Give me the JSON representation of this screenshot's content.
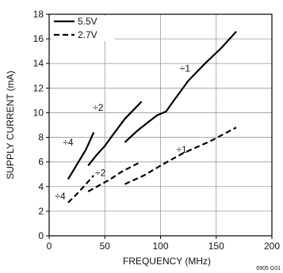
{
  "chart_data": {
    "type": "line",
    "xlabel": "FREQUENCY (MHz)",
    "ylabel": "SUPPLY CURRENT (mA)",
    "xlim": [
      0,
      200
    ],
    "ylim": [
      0,
      18
    ],
    "x_ticks": [
      0,
      50,
      100,
      150,
      200
    ],
    "y_ticks": [
      0,
      2,
      4,
      6,
      8,
      10,
      12,
      14,
      16,
      18
    ],
    "grid": true,
    "legend_position": "top-left",
    "legend": [
      {
        "label": "5.5V",
        "style": "solid"
      },
      {
        "label": "2.7V",
        "style": "dashed"
      }
    ],
    "series": [
      {
        "name": "5.5V",
        "label": "÷4",
        "style": "solid",
        "x": [
          17,
          25,
          33,
          40
        ],
        "y": [
          4.6,
          5.8,
          7.0,
          8.4
        ]
      },
      {
        "name": "5.5V",
        "label": "÷2",
        "style": "solid",
        "x": [
          35,
          42,
          50,
          58,
          68,
          83
        ],
        "y": [
          5.7,
          6.5,
          7.3,
          8.3,
          9.5,
          10.9
        ]
      },
      {
        "name": "5.5V",
        "label": "÷1",
        "style": "solid",
        "x": [
          68,
          80,
          90,
          97,
          105,
          112,
          125,
          140,
          155,
          168
        ],
        "y": [
          7.6,
          8.6,
          9.3,
          9.8,
          10.1,
          11.0,
          12.6,
          14.0,
          15.3,
          16.6
        ]
      },
      {
        "name": "2.7V",
        "label": "÷4",
        "style": "dashed",
        "x": [
          17,
          25,
          33,
          40
        ],
        "y": [
          2.7,
          3.4,
          4.2,
          4.9
        ]
      },
      {
        "name": "2.7V",
        "label": "÷2",
        "style": "dashed",
        "x": [
          35,
          45,
          55,
          65,
          80
        ],
        "y": [
          3.6,
          4.1,
          4.6,
          5.2,
          5.9
        ]
      },
      {
        "name": "2.7V",
        "label": "÷1",
        "style": "dashed",
        "x": [
          68,
          85,
          100,
          120,
          145,
          168
        ],
        "y": [
          4.2,
          4.9,
          5.7,
          6.7,
          7.7,
          8.8
        ]
      }
    ],
    "annotations": [
      {
        "text": "÷4",
        "x": 17,
        "y": 7.6
      },
      {
        "text": "÷2",
        "x": 44,
        "y": 10.4
      },
      {
        "text": "÷1",
        "x": 122,
        "y": 13.6
      },
      {
        "text": "÷2",
        "x": 46,
        "y": 5.1
      },
      {
        "text": "÷1",
        "x": 119,
        "y": 7.0
      },
      {
        "text": "÷4",
        "x": 10,
        "y": 3.2
      }
    ],
    "figure_id": "6905 G01"
  }
}
